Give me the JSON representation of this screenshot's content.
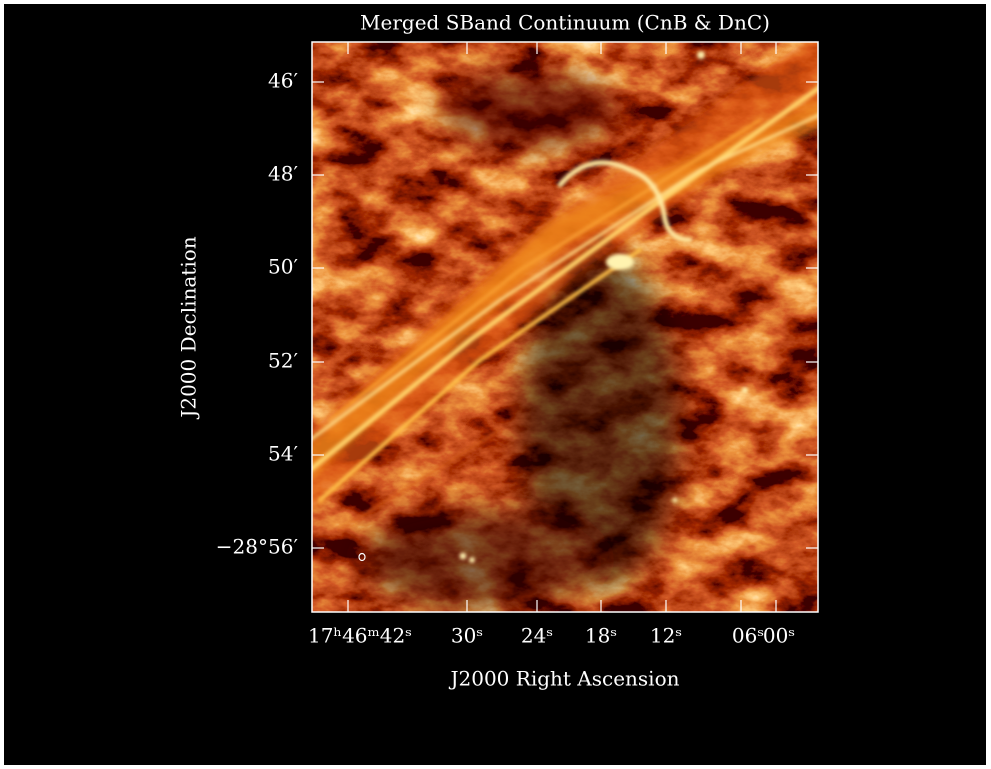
{
  "title": "Merged SBand Continuum (CnB & DnC)",
  "axes": {
    "x_label": "J2000 Right Ascension",
    "y_label": "J2000 Declination",
    "x_ticks": [
      "17ʰ46ᵐ42ˢ",
      "30ˢ",
      "24ˢ",
      "18ˢ",
      "12ˢ",
      "06ˢ",
      "00ˢ"
    ],
    "y_ticks": [
      "46′",
      "48′",
      "50′",
      "52′",
      "54′",
      "−28°56′"
    ]
  }
}
